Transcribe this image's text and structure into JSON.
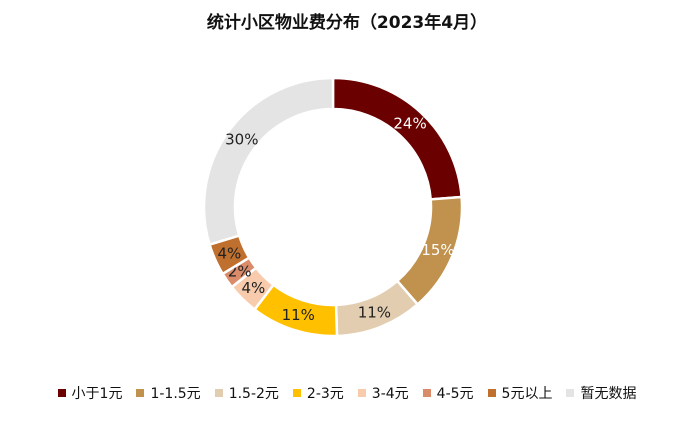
{
  "chart_data": {
    "type": "donut",
    "title": "统计小区物业费分布（2023年4月）",
    "categories": [
      "小于1元",
      "1-1.5元",
      "1.5-2元",
      "2-3元",
      "3-4元",
      "4-5元",
      "5元以上",
      "暂无数据"
    ],
    "values": [
      24,
      15,
      11,
      11,
      4,
      2,
      4,
      30
    ],
    "labels": [
      "24%",
      "15%",
      "11%",
      "11%",
      "4%",
      "2%",
      "4%",
      "30%"
    ],
    "colors": [
      "#6B0000",
      "#C1924E",
      "#E2CDB0",
      "#FFC000",
      "#F8CBAD",
      "#D98B6A",
      "#C0702E",
      "#E4E4E4"
    ],
    "label_colors": [
      "#ffffff",
      "#ffffff",
      "#222222",
      "#222222",
      "#222222",
      "#222222",
      "#222222",
      "#222222"
    ],
    "legend_position": "bottom"
  }
}
